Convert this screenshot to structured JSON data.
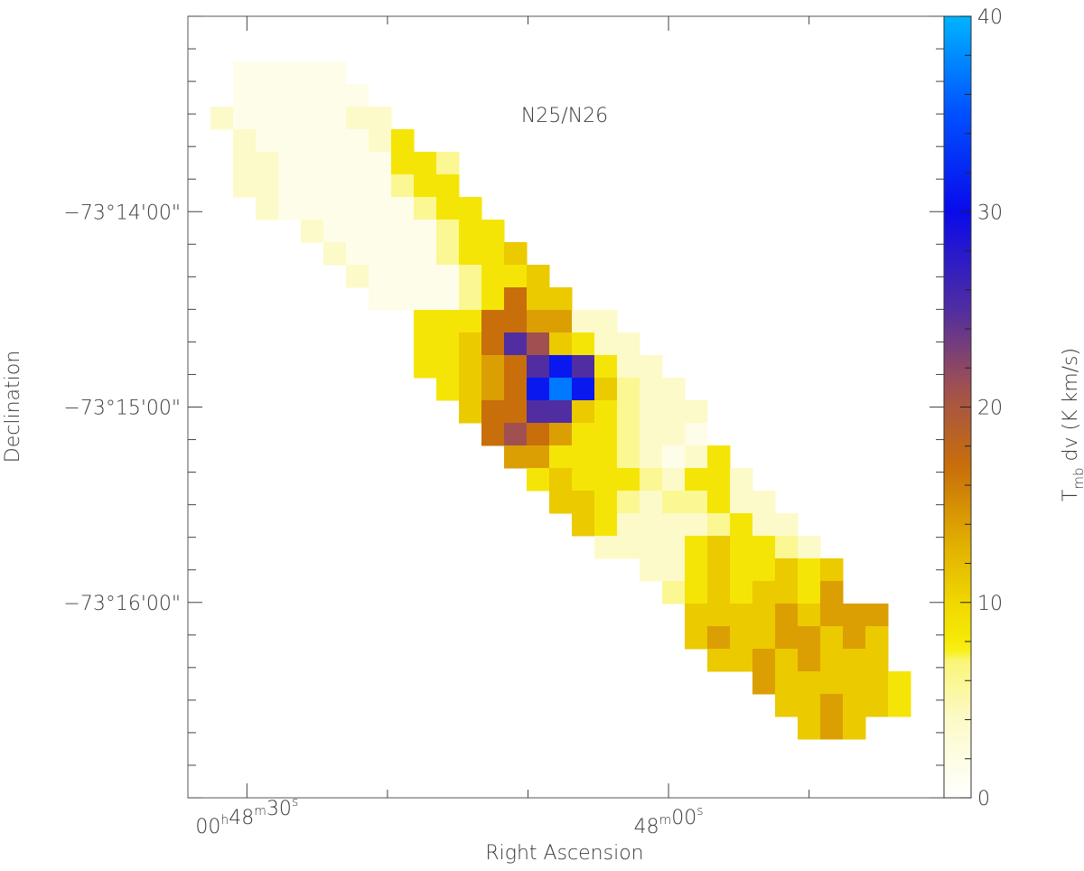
{
  "chart_data": {
    "type": "heatmap",
    "title": "N25/N26",
    "xlabel": "Right Ascension",
    "ylabel": "Declination",
    "colorbar": {
      "label_main": "T",
      "label_sub": "mb",
      "label_rest": " dv  (K km/s)",
      "range": [
        0,
        40
      ],
      "ticks": [
        0,
        10,
        20,
        30,
        40
      ],
      "tick_labels": [
        "0",
        "10",
        "20",
        "30",
        "40"
      ]
    },
    "x_axis": {
      "units": "RA seconds relative to 00h48m00s",
      "range": [
        34.2,
        -19.6
      ],
      "major_ticks": [
        {
          "value": 30,
          "label": {
            "h": "00",
            "hs": "h",
            "m": "48",
            "ms": "m",
            "s": "30",
            "ss": "s"
          }
        },
        {
          "value": 0,
          "label": {
            "h": "",
            "hs": "",
            "m": "48",
            "ms": "m",
            "s": "00",
            "ss": "s"
          }
        }
      ],
      "minor_ticks": [
        20,
        10,
        -10
      ]
    },
    "y_axis": {
      "units": "Dec arcmin offset from -73 deg",
      "range": [
        -17.0,
        -13.0
      ],
      "major_ticks": [
        {
          "value": -14,
          "label": "−73°14'00\""
        },
        {
          "value": -15,
          "label": "−73°15'00\""
        },
        {
          "value": -16,
          "label": "−73°16'00\""
        }
      ]
    },
    "value_legend": {
      "w": 1.5,
      "p": 4,
      "q": 6,
      "y": 8.5,
      "g": 11,
      "o": 14,
      "O": 17,
      "m": 21,
      "v": 25,
      "b": 31,
      "B": 37
    },
    "grid_rows": [
      {
        "row": 2,
        "start": 2,
        "vals": "wwwww"
      },
      {
        "row": 3,
        "start": 2,
        "vals": "wwwwww"
      },
      {
        "row": 4,
        "start": 1,
        "vals": "pwwwwwpp"
      },
      {
        "row": 5,
        "start": 2,
        "vals": "pwwwwwpy"
      },
      {
        "row": 6,
        "start": 2,
        "vals": "ppwwwwwyyq"
      },
      {
        "row": 7,
        "start": 2,
        "vals": "ppwwwwwqyy"
      },
      {
        "row": 8,
        "start": 3,
        "vals": "pwwwwwwqyy"
      },
      {
        "row": 9,
        "start": 5,
        "vals": "pwwwwwqyy"
      },
      {
        "row": 10,
        "start": 6,
        "vals": "pwwwwqyyg"
      },
      {
        "row": 11,
        "start": 7,
        "vals": "pwwwwqyyg"
      },
      {
        "row": 12,
        "start": 8,
        "vals": "wwwwqyOgg"
      },
      {
        "row": 13,
        "start": 10,
        "vals": "yyyOOoopp"
      },
      {
        "row": 14,
        "start": 10,
        "vals": "yygOvmgypp"
      },
      {
        "row": 15,
        "start": 10,
        "vals": "yygoOvbvypp"
      },
      {
        "row": 16,
        "start": 11,
        "vals": "ygoObBbgqpp"
      },
      {
        "row": 17,
        "start": 12,
        "vals": "gOOvvgyqppp"
      },
      {
        "row": 18,
        "start": 13,
        "vals": "OmOoyyqppw"
      },
      {
        "row": 19,
        "start": 14,
        "vals": "ooyyyqpwpy"
      },
      {
        "row": 20,
        "start": 15,
        "vals": "ygyyyqpyyp"
      },
      {
        "row": 21,
        "start": 16,
        "vals": "ggyqpqqypp"
      },
      {
        "row": 22,
        "start": 17,
        "vals": "gyppppqypp"
      },
      {
        "row": 23,
        "start": 18,
        "vals": "ppppygyyqp"
      },
      {
        "row": 24,
        "start": 20,
        "vals": "ppygyygyg"
      },
      {
        "row": 25,
        "start": 21,
        "vals": "qygyggyo"
      },
      {
        "row": 26,
        "start": 22,
        "vals": "ggggogooo"
      },
      {
        "row": 27,
        "start": 22,
        "vals": "goggoogog"
      },
      {
        "row": 28,
        "start": 23,
        "vals": "ggogoggg"
      },
      {
        "row": 29,
        "start": 25,
        "vals": "ogggggy"
      },
      {
        "row": 30,
        "start": 26,
        "vals": "ggoggy"
      },
      {
        "row": 31,
        "start": 27,
        "vals": "gog"
      }
    ]
  }
}
